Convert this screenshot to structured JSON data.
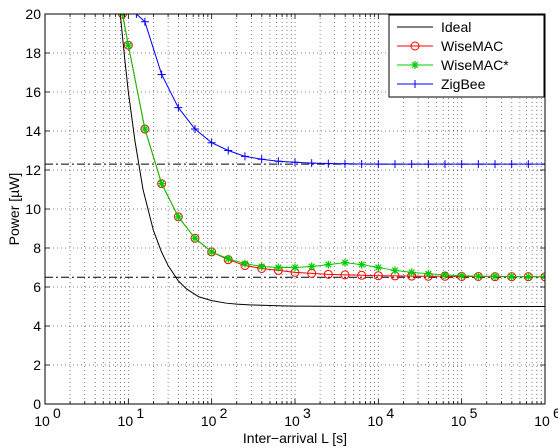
{
  "chart_data": {
    "type": "line",
    "title": "",
    "xlabel": "Inter−arrival L [s]",
    "ylabel": "Power [µW]",
    "xscale": "log",
    "xlim": [
      1,
      1000000
    ],
    "ylim": [
      0,
      20
    ],
    "grid": true,
    "legend_position": "top-right",
    "x_ticks": [
      {
        "value": 1,
        "base": "10",
        "exp": "0"
      },
      {
        "value": 10,
        "base": "10",
        "exp": "1"
      },
      {
        "value": 100,
        "base": "10",
        "exp": "2"
      },
      {
        "value": 1000,
        "base": "10",
        "exp": "3"
      },
      {
        "value": 10000,
        "base": "10",
        "exp": "4"
      },
      {
        "value": 100000,
        "base": "10",
        "exp": "5"
      },
      {
        "value": 1000000,
        "base": "10",
        "exp": "6"
      }
    ],
    "y_ticks": [
      {
        "value": 0,
        "label": "0"
      },
      {
        "value": 2,
        "label": "2"
      },
      {
        "value": 4,
        "label": "4"
      },
      {
        "value": 6,
        "label": "6"
      },
      {
        "value": 8,
        "label": "8"
      },
      {
        "value": 10,
        "label": "10"
      },
      {
        "value": 12,
        "label": "12"
      },
      {
        "value": 14,
        "label": "14"
      },
      {
        "value": 16,
        "label": "16"
      },
      {
        "value": 18,
        "label": "18"
      },
      {
        "value": 20,
        "label": "20"
      }
    ],
    "reference_lines": [
      {
        "y": 12.3,
        "color": "#000000",
        "style": "dash-dot"
      },
      {
        "y": 6.5,
        "color": "#000000",
        "style": "dash-dot"
      }
    ],
    "series": [
      {
        "name": "Ideal",
        "color": "#000000",
        "marker": "none",
        "x": [
          8,
          9,
          10,
          12,
          15,
          20,
          25,
          30,
          40,
          50,
          70,
          100,
          150,
          200,
          300,
          500,
          700,
          1000,
          2000,
          5000,
          10000,
          100000,
          1000000
        ],
        "y": [
          20.0,
          17.8,
          16.0,
          13.5,
          11.0,
          8.9,
          7.8,
          7.1,
          6.3,
          5.9,
          5.5,
          5.3,
          5.17,
          5.12,
          5.08,
          5.05,
          5.03,
          5.02,
          5.01,
          5.0,
          5.0,
          5.0,
          5.0
        ]
      },
      {
        "name": "WiseMAC",
        "color": "#ff0000",
        "marker": "circle",
        "x": [
          8.5,
          10,
          15.8,
          25.1,
          39.8,
          63.1,
          100,
          158,
          251,
          398,
          631,
          1000,
          1585,
          2512,
          3981,
          6310,
          10000,
          15849,
          25119,
          39811,
          63096,
          100000,
          158489,
          251189,
          398107,
          630957,
          1000000
        ],
        "y": [
          20.0,
          18.4,
          14.1,
          11.3,
          9.6,
          8.5,
          7.8,
          7.4,
          7.1,
          6.95,
          6.85,
          6.75,
          6.7,
          6.65,
          6.62,
          6.6,
          6.58,
          6.57,
          6.56,
          6.55,
          6.55,
          6.54,
          6.54,
          6.53,
          6.53,
          6.53,
          6.52
        ]
      },
      {
        "name": "WiseMAC*",
        "color": "#00cc00",
        "marker": "star",
        "x": [
          8.5,
          10,
          15.8,
          25.1,
          39.8,
          63.1,
          100,
          158,
          251,
          398,
          631,
          1000,
          1585,
          2512,
          3981,
          6310,
          10000,
          15849,
          25119,
          39811,
          63096,
          100000,
          158489,
          251189,
          398107,
          630957,
          1000000
        ],
        "y": [
          20.0,
          18.4,
          14.1,
          11.3,
          9.6,
          8.5,
          7.8,
          7.45,
          7.2,
          7.05,
          7.0,
          7.0,
          7.05,
          7.15,
          7.25,
          7.15,
          7.0,
          6.85,
          6.75,
          6.68,
          6.62,
          6.58,
          6.55,
          6.55,
          6.54,
          6.53,
          6.53
        ]
      },
      {
        "name": "ZigBee",
        "color": "#0000ff",
        "marker": "plus",
        "x": [
          12.5,
          15.8,
          25.1,
          39.8,
          63.1,
          100,
          158,
          251,
          398,
          631,
          1000,
          1585,
          2512,
          3981,
          6310,
          10000,
          15849,
          25119,
          39811,
          63096,
          100000,
          158489,
          251189,
          398107,
          630957,
          1000000
        ],
        "y": [
          20.0,
          19.6,
          16.9,
          15.2,
          14.1,
          13.4,
          13.0,
          12.7,
          12.55,
          12.45,
          12.4,
          12.35,
          12.33,
          12.32,
          12.31,
          12.3,
          12.3,
          12.3,
          12.3,
          12.3,
          12.3,
          12.3,
          12.3,
          12.3,
          12.3,
          12.3
        ]
      }
    ]
  }
}
